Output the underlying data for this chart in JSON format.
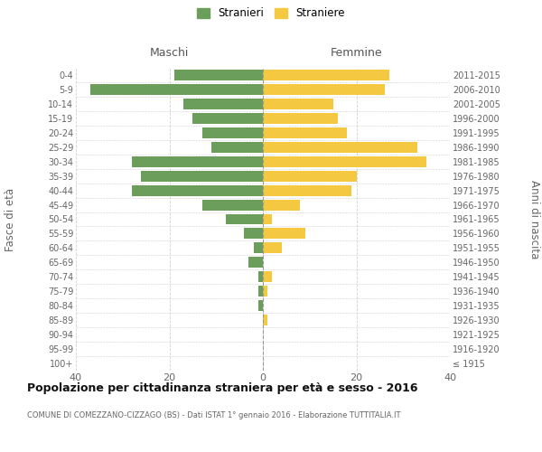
{
  "age_groups": [
    "100+",
    "95-99",
    "90-94",
    "85-89",
    "80-84",
    "75-79",
    "70-74",
    "65-69",
    "60-64",
    "55-59",
    "50-54",
    "45-49",
    "40-44",
    "35-39",
    "30-34",
    "25-29",
    "20-24",
    "15-19",
    "10-14",
    "5-9",
    "0-4"
  ],
  "birth_years": [
    "≤ 1915",
    "1916-1920",
    "1921-1925",
    "1926-1930",
    "1931-1935",
    "1936-1940",
    "1941-1945",
    "1946-1950",
    "1951-1955",
    "1956-1960",
    "1961-1965",
    "1966-1970",
    "1971-1975",
    "1976-1980",
    "1981-1985",
    "1986-1990",
    "1991-1995",
    "1996-2000",
    "2001-2005",
    "2006-2010",
    "2011-2015"
  ],
  "maschi": [
    0,
    0,
    0,
    0,
    1,
    1,
    1,
    3,
    2,
    4,
    8,
    13,
    28,
    26,
    28,
    11,
    13,
    15,
    17,
    37,
    19
  ],
  "femmine": [
    0,
    0,
    0,
    1,
    0,
    1,
    2,
    0,
    4,
    9,
    2,
    8,
    19,
    20,
    35,
    33,
    18,
    16,
    15,
    26,
    27
  ],
  "maschi_color": "#6a9e5a",
  "femmine_color": "#f5c842",
  "title": "Popolazione per cittadinanza straniera per età e sesso - 2016",
  "subtitle": "COMUNE DI COMEZZANO-CIZZAGO (BS) - Dati ISTAT 1° gennaio 2016 - Elaborazione TUTTITALIA.IT",
  "ylabel_left": "Fasce di età",
  "ylabel_right": "Anni di nascita",
  "xlabel_left": "Maschi",
  "xlabel_right": "Femmine",
  "legend_stranieri": "Stranieri",
  "legend_straniere": "Straniere",
  "xlim": 40,
  "background_color": "#ffffff",
  "grid_color": "#d0d0d0",
  "bar_height": 0.75
}
